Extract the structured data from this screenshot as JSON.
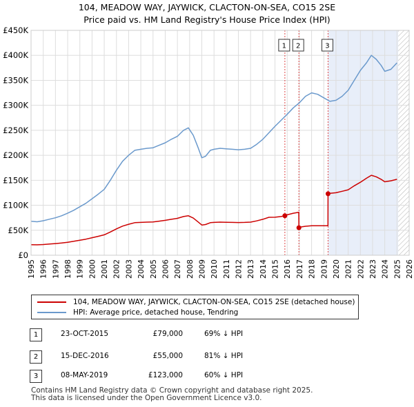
{
  "title_line1": "104, MEADOW WAY, JAYWICK, CLACTON-ON-SEA, CO15 2SE",
  "title_line2": "Price paid vs. HM Land Registry's House Price Index (HPI)",
  "legend": {
    "property": "104, MEADOW WAY, JAYWICK, CLACTON-ON-SEA, CO15 2SE (detached house)",
    "hpi": "HPI: Average price, detached house, Tendring"
  },
  "transactions": [
    {
      "num": "1",
      "date": "23-OCT-2015",
      "price": "£79,000",
      "hpi": "69% ↓ HPI"
    },
    {
      "num": "2",
      "date": "15-DEC-2016",
      "price": "£55,000",
      "hpi": "81% ↓ HPI"
    },
    {
      "num": "3",
      "date": "08-MAY-2019",
      "price": "£123,000",
      "hpi": "60% ↓ HPI"
    }
  ],
  "footer_line1": "Contains HM Land Registry data © Crown copyright and database right 2025.",
  "footer_line2": "This data is licensed under the Open Government Licence v3.0.",
  "colors": {
    "property": "#cc0000",
    "hpi": "#6a99cc",
    "grid": "#dddddd",
    "shade": "#e8eef9"
  },
  "chart_data": {
    "type": "line",
    "title": "Price paid vs. HM Land Registry's House Price Index (HPI)",
    "xlim": [
      1995,
      2026
    ],
    "ylim": [
      0,
      450000
    ],
    "x_ticks": [
      1995,
      1996,
      1997,
      1998,
      1999,
      2000,
      2001,
      2002,
      2003,
      2004,
      2005,
      2006,
      2007,
      2008,
      2009,
      2010,
      2011,
      2012,
      2013,
      2014,
      2015,
      2016,
      2017,
      2018,
      2019,
      2020,
      2021,
      2022,
      2023,
      2024,
      2025,
      2026
    ],
    "y_ticks": [
      {
        "value": 0,
        "label": "£0"
      },
      {
        "value": 50000,
        "label": "£50K"
      },
      {
        "value": 100000,
        "label": "£100K"
      },
      {
        "value": 150000,
        "label": "£150K"
      },
      {
        "value": 200000,
        "label": "£200K"
      },
      {
        "value": 250000,
        "label": "£250K"
      },
      {
        "value": 300000,
        "label": "£300K"
      },
      {
        "value": 350000,
        "label": "£350K"
      },
      {
        "value": 400000,
        "label": "£400K"
      },
      {
        "value": 450000,
        "label": "£450K"
      }
    ],
    "shaded_ranges": [
      [
        2019.35,
        2025.1
      ]
    ],
    "hatched_ranges": [
      [
        2025.1,
        2026
      ]
    ],
    "series": [
      {
        "name": "HPI: Average price, detached house, Tendring",
        "x": [
          1995,
          1995.5,
          1996,
          1996.5,
          1997,
          1997.5,
          1998,
          1998.5,
          1999,
          1999.5,
          2000,
          2000.5,
          2001,
          2001.5,
          2002,
          2002.5,
          2003,
          2003.5,
          2004,
          2004.5,
          2005,
          2005.5,
          2006,
          2006.5,
          2007,
          2007.5,
          2007.9,
          2008.3,
          2008.7,
          2009.0,
          2009.3,
          2009.7,
          2010,
          2010.5,
          2011,
          2011.5,
          2012,
          2012.5,
          2013,
          2013.5,
          2014,
          2014.5,
          2015,
          2015.5,
          2016,
          2016.5,
          2017,
          2017.5,
          2018,
          2018.5,
          2019,
          2019.5,
          2020,
          2020.5,
          2021,
          2021.5,
          2022,
          2022.5,
          2022.9,
          2023.3,
          2023.7,
          2024,
          2024.5,
          2025
        ],
        "values": [
          68000,
          67000,
          69000,
          72000,
          75000,
          79000,
          84000,
          90000,
          97000,
          104000,
          113000,
          122000,
          132000,
          150000,
          170000,
          188000,
          200000,
          210000,
          212000,
          214000,
          215000,
          220000,
          225000,
          232000,
          238000,
          250000,
          255000,
          240000,
          215000,
          195000,
          198000,
          210000,
          212000,
          214000,
          213000,
          212000,
          211000,
          212000,
          214000,
          222000,
          232000,
          245000,
          258000,
          270000,
          282000,
          295000,
          305000,
          318000,
          325000,
          322000,
          315000,
          308000,
          310000,
          318000,
          330000,
          350000,
          370000,
          385000,
          400000,
          392000,
          380000,
          368000,
          372000,
          385000
        ]
      },
      {
        "name": "104, MEADOW WAY, JAYWICK, CLACTON-ON-SEA, CO15 2SE (detached house)",
        "x": [
          1995,
          1995.5,
          1996,
          1996.5,
          1997,
          1997.5,
          1998,
          1998.5,
          1999,
          1999.5,
          2000,
          2000.5,
          2001,
          2001.5,
          2002,
          2002.5,
          2003,
          2003.5,
          2004,
          2004.5,
          2005,
          2005.5,
          2006,
          2006.5,
          2007,
          2007.5,
          2007.9,
          2008.3,
          2008.7,
          2009.0,
          2009.3,
          2009.7,
          2010,
          2010.5,
          2011,
          2011.5,
          2012,
          2012.5,
          2013,
          2013.5,
          2014,
          2014.5,
          2015,
          2015.5,
          2015.81,
          2016,
          2016.5,
          2016.95,
          2016.96,
          2017,
          2017.5,
          2018,
          2018.5,
          2019,
          2019.34,
          2019.35,
          2019.5,
          2020,
          2020.5,
          2021,
          2021.5,
          2022,
          2022.5,
          2022.9,
          2023.3,
          2023.7,
          2024,
          2024.5,
          2025
        ],
        "values": [
          21000,
          20800,
          21400,
          22300,
          23300,
          24500,
          26000,
          27900,
          30100,
          32200,
          35000,
          37800,
          40900,
          46500,
          52700,
          58300,
          62000,
          65100,
          65700,
          66300,
          66700,
          68200,
          69800,
          71900,
          73800,
          77500,
          79000,
          74400,
          66600,
          60400,
          61400,
          65100,
          65700,
          66300,
          66000,
          65700,
          65400,
          65700,
          66300,
          68800,
          71900,
          75900,
          76000,
          77500,
          79000,
          80900,
          84000,
          86000,
          55000,
          56000,
          58000,
          59000,
          59000,
          59000,
          59000,
          123000,
          124000,
          125000,
          128000,
          131000,
          139000,
          146000,
          154000,
          160000,
          157000,
          152000,
          147000,
          149000,
          152000
        ]
      }
    ],
    "sales": [
      {
        "label": "1",
        "x": 2015.81,
        "value": 79000
      },
      {
        "label": "2",
        "x": 2016.96,
        "value": 55000
      },
      {
        "label": "3",
        "x": 2019.35,
        "value": 123000
      }
    ]
  }
}
